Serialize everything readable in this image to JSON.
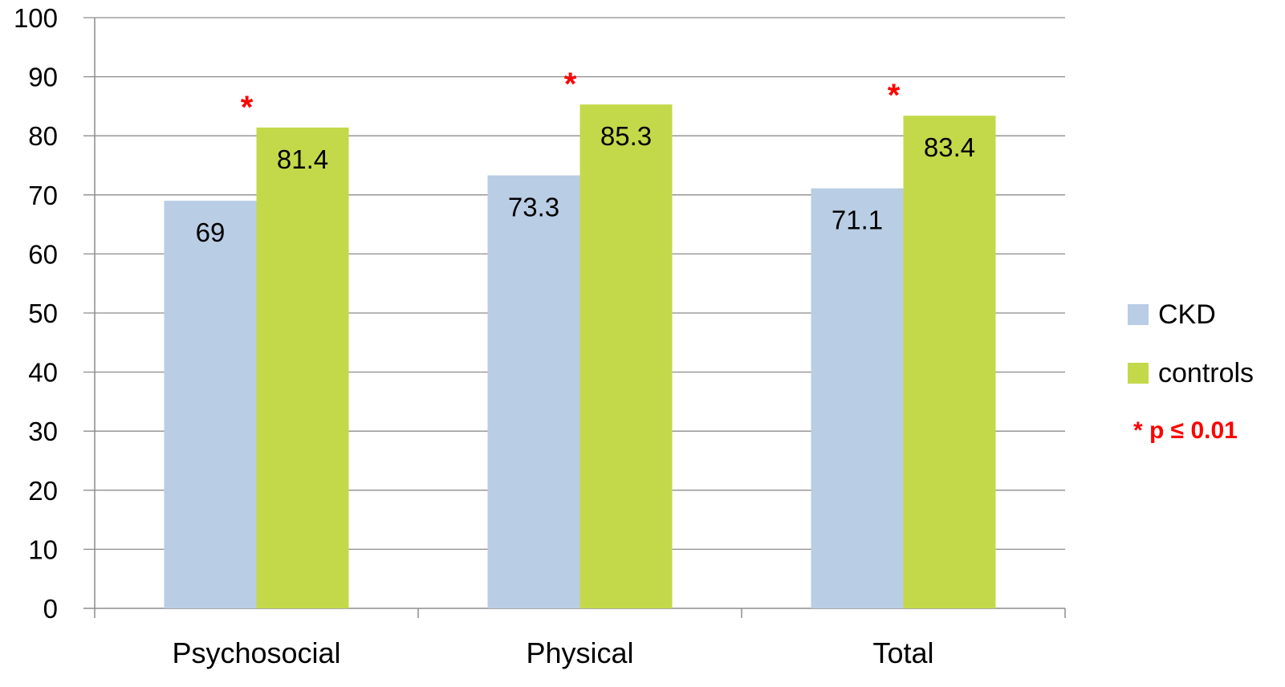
{
  "chart_data": {
    "type": "bar",
    "categories": [
      "Psychosocial",
      "Physical",
      "Total"
    ],
    "series": [
      {
        "name": "CKD",
        "values": [
          69,
          73.3,
          71.1
        ],
        "color": "#b9cde5"
      },
      {
        "name": "controls",
        "values": [
          81.4,
          85.3,
          83.4
        ],
        "color": "#c3d94a"
      }
    ],
    "data_labels": {
      "CKD": [
        "69",
        "73.3",
        "71.1"
      ],
      "controls": [
        "81.4",
        "85.3",
        "83.4"
      ]
    },
    "significance_marks": [
      "*",
      "*",
      "*"
    ],
    "significance_color": "#ff0000",
    "ylim": [
      0,
      100
    ],
    "yticks": [
      0,
      10,
      20,
      30,
      40,
      50,
      60,
      70,
      80,
      90,
      100
    ],
    "grid": true,
    "legend_position": "right",
    "legend_note": "* p ≤ 0.01",
    "title": "",
    "xlabel": "",
    "ylabel": ""
  }
}
